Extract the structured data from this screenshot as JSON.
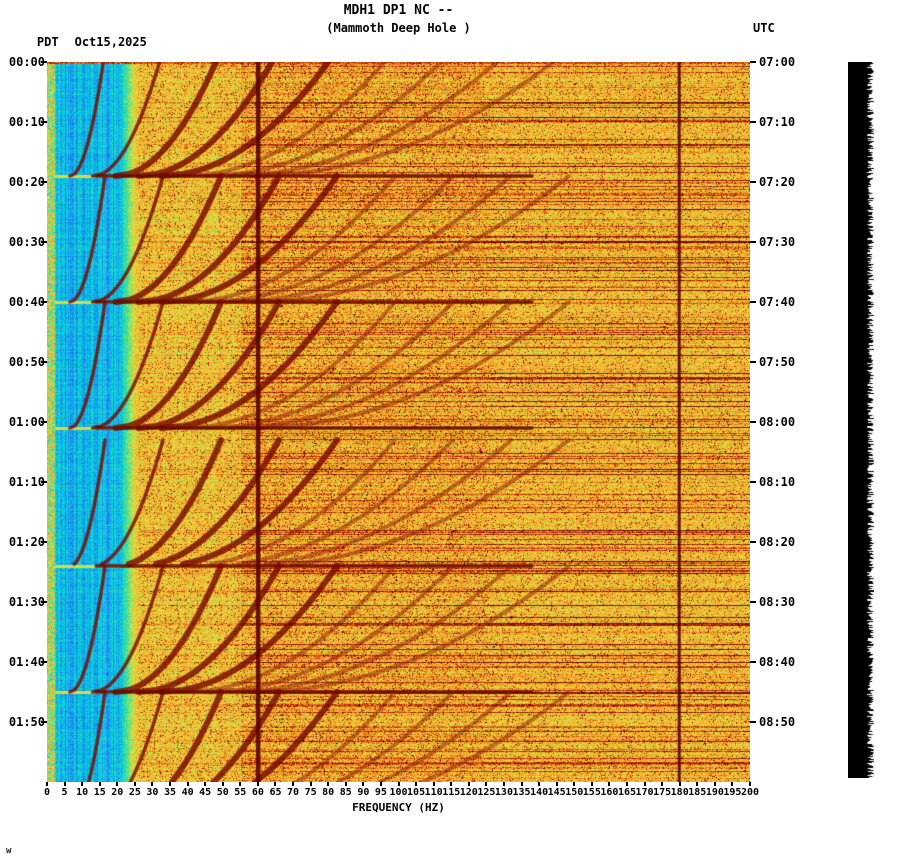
{
  "header": {
    "timezone_left": "PDT",
    "date": "Oct15,2025",
    "timezone_right": "UTC"
  },
  "footer": {
    "mark": "w"
  },
  "side_strip": {
    "color": "#000000"
  },
  "colors": {
    "background": "#ffffff",
    "text": "#000000",
    "powerline_line": "#5c0400",
    "glide_arc": "#780a00",
    "strip": "#000000"
  },
  "chart_data": {
    "type": "heatmap",
    "subtype": "seismic-spectrogram",
    "title": "MDH1 DP1 NC --",
    "subtitle": "(Mammoth Deep Hole )",
    "xlabel": "FREQUENCY (HZ)",
    "xlim": [
      0,
      200
    ],
    "x_tick_step_hz": 5,
    "x_ticks": [
      0,
      5,
      10,
      15,
      20,
      25,
      30,
      35,
      40,
      45,
      50,
      55,
      60,
      65,
      70,
      75,
      80,
      85,
      90,
      95,
      100,
      105,
      110,
      115,
      120,
      125,
      130,
      135,
      140,
      145,
      150,
      155,
      160,
      165,
      170,
      175,
      180,
      185,
      190,
      195,
      200
    ],
    "duration_minutes": 120,
    "time_tick_step_minutes": 10,
    "left_time_ticks": [
      "00:00",
      "00:10",
      "00:20",
      "00:30",
      "00:40",
      "00:50",
      "01:00",
      "01:10",
      "01:20",
      "01:30",
      "01:40",
      "01:50"
    ],
    "right_time_ticks": [
      "07:00",
      "07:10",
      "07:20",
      "07:30",
      "07:40",
      "07:50",
      "08:00",
      "08:10",
      "08:20",
      "08:30",
      "08:40",
      "08:50"
    ],
    "legend": "none",
    "grid": false,
    "features": {
      "seed": 42,
      "low_noise_cyan_band_hz": [
        2,
        21
      ],
      "powerline_lines_hz": [
        60,
        180
      ],
      "event_times_min": [
        19,
        40,
        61,
        84,
        105,
        126
      ],
      "block_length_min": 21,
      "glide_harmonics": 9,
      "glide_start_hz_per_harmonic": 16.5,
      "glide_end_hz_per_harmonic": 6.5,
      "event_line_span_hz": [
        14,
        138
      ]
    },
    "palette": {
      "stops": [
        {
          "v": 0.0,
          "c": "#1050e0"
        },
        {
          "v": 0.1,
          "c": "#2090f0"
        },
        {
          "v": 0.18,
          "c": "#00c8e8"
        },
        {
          "v": 0.28,
          "c": "#30e0b0"
        },
        {
          "v": 0.38,
          "c": "#90e060"
        },
        {
          "v": 0.48,
          "c": "#e0e040"
        },
        {
          "v": 0.58,
          "c": "#f0c838"
        },
        {
          "v": 0.68,
          "c": "#f09828"
        },
        {
          "v": 0.78,
          "c": "#e05818"
        },
        {
          "v": 0.88,
          "c": "#b01c08"
        },
        {
          "v": 1.0,
          "c": "#5c0300"
        }
      ]
    }
  }
}
